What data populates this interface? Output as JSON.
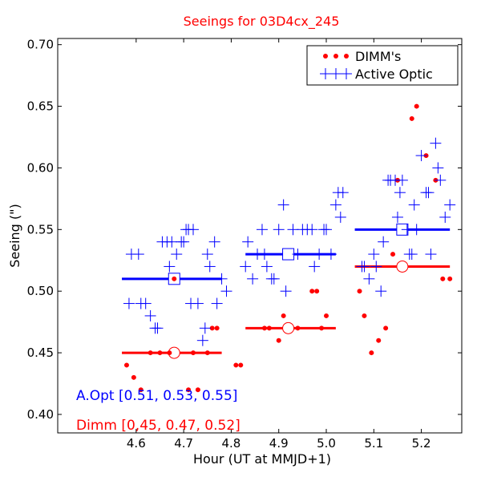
{
  "chart_data": {
    "type": "scatter",
    "title": "Seeings for 03D4cx_245",
    "xlabel": "Hour (UT at MMJD+1)",
    "ylabel": "Seeing (\")",
    "xlim": [
      4.435,
      5.285
    ],
    "ylim": [
      0.385,
      0.705
    ],
    "xticks": [
      "4.6",
      "4.7",
      "4.8",
      "4.9",
      "5.0",
      "5.1",
      "5.2"
    ],
    "xtick_values": [
      4.6,
      4.7,
      4.8,
      4.9,
      5.0,
      5.1,
      5.2
    ],
    "yticks": [
      "0.40",
      "0.45",
      "0.50",
      "0.55",
      "0.60",
      "0.65",
      "0.70"
    ],
    "ytick_values": [
      0.4,
      0.45,
      0.5,
      0.55,
      0.6,
      0.65,
      0.7
    ],
    "legend_position": "top-right",
    "colors": {
      "dimm": "#ff0000",
      "aopt": "#0000ff",
      "title": "#ff0000"
    },
    "series": [
      {
        "name": "DIMM's",
        "marker": "dot",
        "points": [
          [
            4.58,
            0.44
          ],
          [
            4.595,
            0.43
          ],
          [
            4.61,
            0.42
          ],
          [
            4.63,
            0.45
          ],
          [
            4.65,
            0.45
          ],
          [
            4.67,
            0.45
          ],
          [
            4.68,
            0.51
          ],
          [
            4.71,
            0.42
          ],
          [
            4.72,
            0.45
          ],
          [
            4.73,
            0.42
          ],
          [
            4.75,
            0.45
          ],
          [
            4.76,
            0.47
          ],
          [
            4.77,
            0.47
          ],
          [
            4.81,
            0.44
          ],
          [
            4.82,
            0.44
          ],
          [
            4.87,
            0.47
          ],
          [
            4.88,
            0.47
          ],
          [
            4.9,
            0.46
          ],
          [
            4.91,
            0.48
          ],
          [
            4.94,
            0.47
          ],
          [
            4.97,
            0.5
          ],
          [
            4.98,
            0.5
          ],
          [
            4.99,
            0.47
          ],
          [
            5.0,
            0.48
          ],
          [
            5.07,
            0.5
          ],
          [
            5.08,
            0.48
          ],
          [
            5.095,
            0.45
          ],
          [
            5.11,
            0.46
          ],
          [
            5.125,
            0.47
          ],
          [
            5.14,
            0.53
          ],
          [
            5.15,
            0.59
          ],
          [
            5.18,
            0.64
          ],
          [
            5.19,
            0.65
          ],
          [
            5.21,
            0.61
          ],
          [
            5.23,
            0.59
          ],
          [
            5.245,
            0.51
          ],
          [
            5.26,
            0.51
          ]
        ]
      },
      {
        "name": "Active Optic",
        "marker": "plus",
        "points": [
          [
            4.585,
            0.49
          ],
          [
            4.59,
            0.53
          ],
          [
            4.605,
            0.53
          ],
          [
            4.61,
            0.49
          ],
          [
            4.62,
            0.49
          ],
          [
            4.63,
            0.48
          ],
          [
            4.64,
            0.47
          ],
          [
            4.645,
            0.47
          ],
          [
            4.655,
            0.54
          ],
          [
            4.665,
            0.54
          ],
          [
            4.67,
            0.52
          ],
          [
            4.675,
            0.54
          ],
          [
            4.685,
            0.53
          ],
          [
            4.695,
            0.54
          ],
          [
            4.7,
            0.54
          ],
          [
            4.705,
            0.55
          ],
          [
            4.71,
            0.55
          ],
          [
            4.715,
            0.49
          ],
          [
            4.72,
            0.55
          ],
          [
            4.73,
            0.49
          ],
          [
            4.74,
            0.46
          ],
          [
            4.745,
            0.47
          ],
          [
            4.75,
            0.53
          ],
          [
            4.755,
            0.52
          ],
          [
            4.765,
            0.54
          ],
          [
            4.77,
            0.49
          ],
          [
            4.78,
            0.51
          ],
          [
            4.79,
            0.5
          ],
          [
            4.83,
            0.52
          ],
          [
            4.835,
            0.54
          ],
          [
            4.845,
            0.51
          ],
          [
            4.855,
            0.53
          ],
          [
            4.865,
            0.55
          ],
          [
            4.87,
            0.53
          ],
          [
            4.875,
            0.52
          ],
          [
            4.885,
            0.51
          ],
          [
            4.89,
            0.51
          ],
          [
            4.9,
            0.55
          ],
          [
            4.91,
            0.57
          ],
          [
            4.915,
            0.5
          ],
          [
            4.93,
            0.55
          ],
          [
            4.94,
            0.53
          ],
          [
            4.95,
            0.55
          ],
          [
            4.96,
            0.55
          ],
          [
            4.97,
            0.55
          ],
          [
            4.975,
            0.52
          ],
          [
            4.985,
            0.53
          ],
          [
            4.995,
            0.55
          ],
          [
            5.0,
            0.55
          ],
          [
            5.01,
            0.53
          ],
          [
            5.02,
            0.57
          ],
          [
            5.025,
            0.58
          ],
          [
            5.03,
            0.56
          ],
          [
            5.035,
            0.58
          ],
          [
            5.075,
            0.52
          ],
          [
            5.08,
            0.52
          ],
          [
            5.09,
            0.51
          ],
          [
            5.1,
            0.53
          ],
          [
            5.105,
            0.52
          ],
          [
            5.115,
            0.5
          ],
          [
            5.12,
            0.54
          ],
          [
            5.13,
            0.59
          ],
          [
            5.135,
            0.59
          ],
          [
            5.145,
            0.59
          ],
          [
            5.15,
            0.56
          ],
          [
            5.155,
            0.58
          ],
          [
            5.16,
            0.59
          ],
          [
            5.17,
            0.55
          ],
          [
            5.175,
            0.53
          ],
          [
            5.18,
            0.53
          ],
          [
            5.185,
            0.57
          ],
          [
            5.19,
            0.55
          ],
          [
            5.2,
            0.61
          ],
          [
            5.21,
            0.58
          ],
          [
            5.215,
            0.58
          ],
          [
            5.22,
            0.53
          ],
          [
            5.23,
            0.62
          ],
          [
            5.235,
            0.6
          ],
          [
            5.24,
            0.59
          ],
          [
            5.25,
            0.56
          ],
          [
            5.26,
            0.57
          ]
        ]
      }
    ],
    "summary_lines": [
      {
        "series": "Active Optic",
        "x_start": 4.57,
        "x_end": 4.78,
        "y": 0.51,
        "marker_x": 4.68
      },
      {
        "series": "Active Optic",
        "x_start": 4.83,
        "x_end": 5.02,
        "y": 0.53,
        "marker_x": 4.92
      },
      {
        "series": "Active Optic",
        "x_start": 5.06,
        "x_end": 5.26,
        "y": 0.55,
        "marker_x": 5.16
      },
      {
        "series": "DIMM's",
        "x_start": 4.57,
        "x_end": 4.78,
        "y": 0.45,
        "marker_x": 4.68
      },
      {
        "series": "DIMM's",
        "x_start": 4.83,
        "x_end": 5.02,
        "y": 0.47,
        "marker_x": 4.92
      },
      {
        "series": "DIMM's",
        "x_start": 5.06,
        "x_end": 5.26,
        "y": 0.52,
        "marker_x": 5.16
      }
    ],
    "annotations": [
      {
        "text": "A.Opt [0.51, 0.53, 0.55]",
        "color": "#0000ff"
      },
      {
        "text": "Dimm [0,45, 0.47, 0.52]",
        "color": "#ff0000"
      }
    ]
  }
}
